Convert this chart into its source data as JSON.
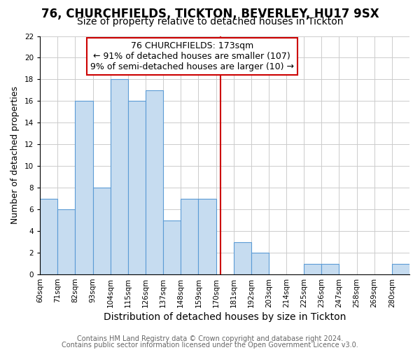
{
  "title1": "76, CHURCHFIELDS, TICKTON, BEVERLEY, HU17 9SX",
  "title2": "Size of property relative to detached houses in Tickton",
  "xlabel": "Distribution of detached houses by size in Tickton",
  "ylabel": "Number of detached properties",
  "bin_labels": [
    "60sqm",
    "71sqm",
    "82sqm",
    "93sqm",
    "104sqm",
    "115sqm",
    "126sqm",
    "137sqm",
    "148sqm",
    "159sqm",
    "170sqm",
    "181sqm",
    "192sqm",
    "203sqm",
    "214sqm",
    "225sqm",
    "236sqm",
    "247sqm",
    "258sqm",
    "269sqm",
    "280sqm"
  ],
  "bin_counts": [
    7,
    6,
    16,
    8,
    18,
    16,
    17,
    5,
    7,
    7,
    0,
    3,
    2,
    0,
    0,
    1,
    1,
    0,
    0,
    0,
    1
  ],
  "bin_edges_sqm": [
    60,
    71,
    82,
    93,
    104,
    115,
    126,
    137,
    148,
    159,
    170,
    181,
    192,
    203,
    214,
    225,
    236,
    247,
    258,
    269,
    280,
    291
  ],
  "bar_color": "#c6dcf0",
  "bar_edgecolor": "#5b9bd5",
  "vline_color": "#cc0000",
  "vline_x": 173,
  "annotation_text": "76 CHURCHFIELDS: 173sqm\n← 91% of detached houses are smaller (107)\n9% of semi-detached houses are larger (10) →",
  "annotation_box_edgecolor": "#cc0000",
  "annotation_box_facecolor": "#ffffff",
  "ylim": [
    0,
    22
  ],
  "yticks": [
    0,
    2,
    4,
    6,
    8,
    10,
    12,
    14,
    16,
    18,
    20,
    22
  ],
  "grid_color": "#cccccc",
  "plot_bg_color": "#ffffff",
  "fig_bg_color": "#ffffff",
  "footer1": "Contains HM Land Registry data © Crown copyright and database right 2024.",
  "footer2": "Contains public sector information licensed under the Open Government Licence v3.0.",
  "title1_fontsize": 12,
  "title2_fontsize": 10,
  "xlabel_fontsize": 10,
  "ylabel_fontsize": 9,
  "tick_fontsize": 7.5,
  "annotation_fontsize": 9,
  "footer_fontsize": 7
}
